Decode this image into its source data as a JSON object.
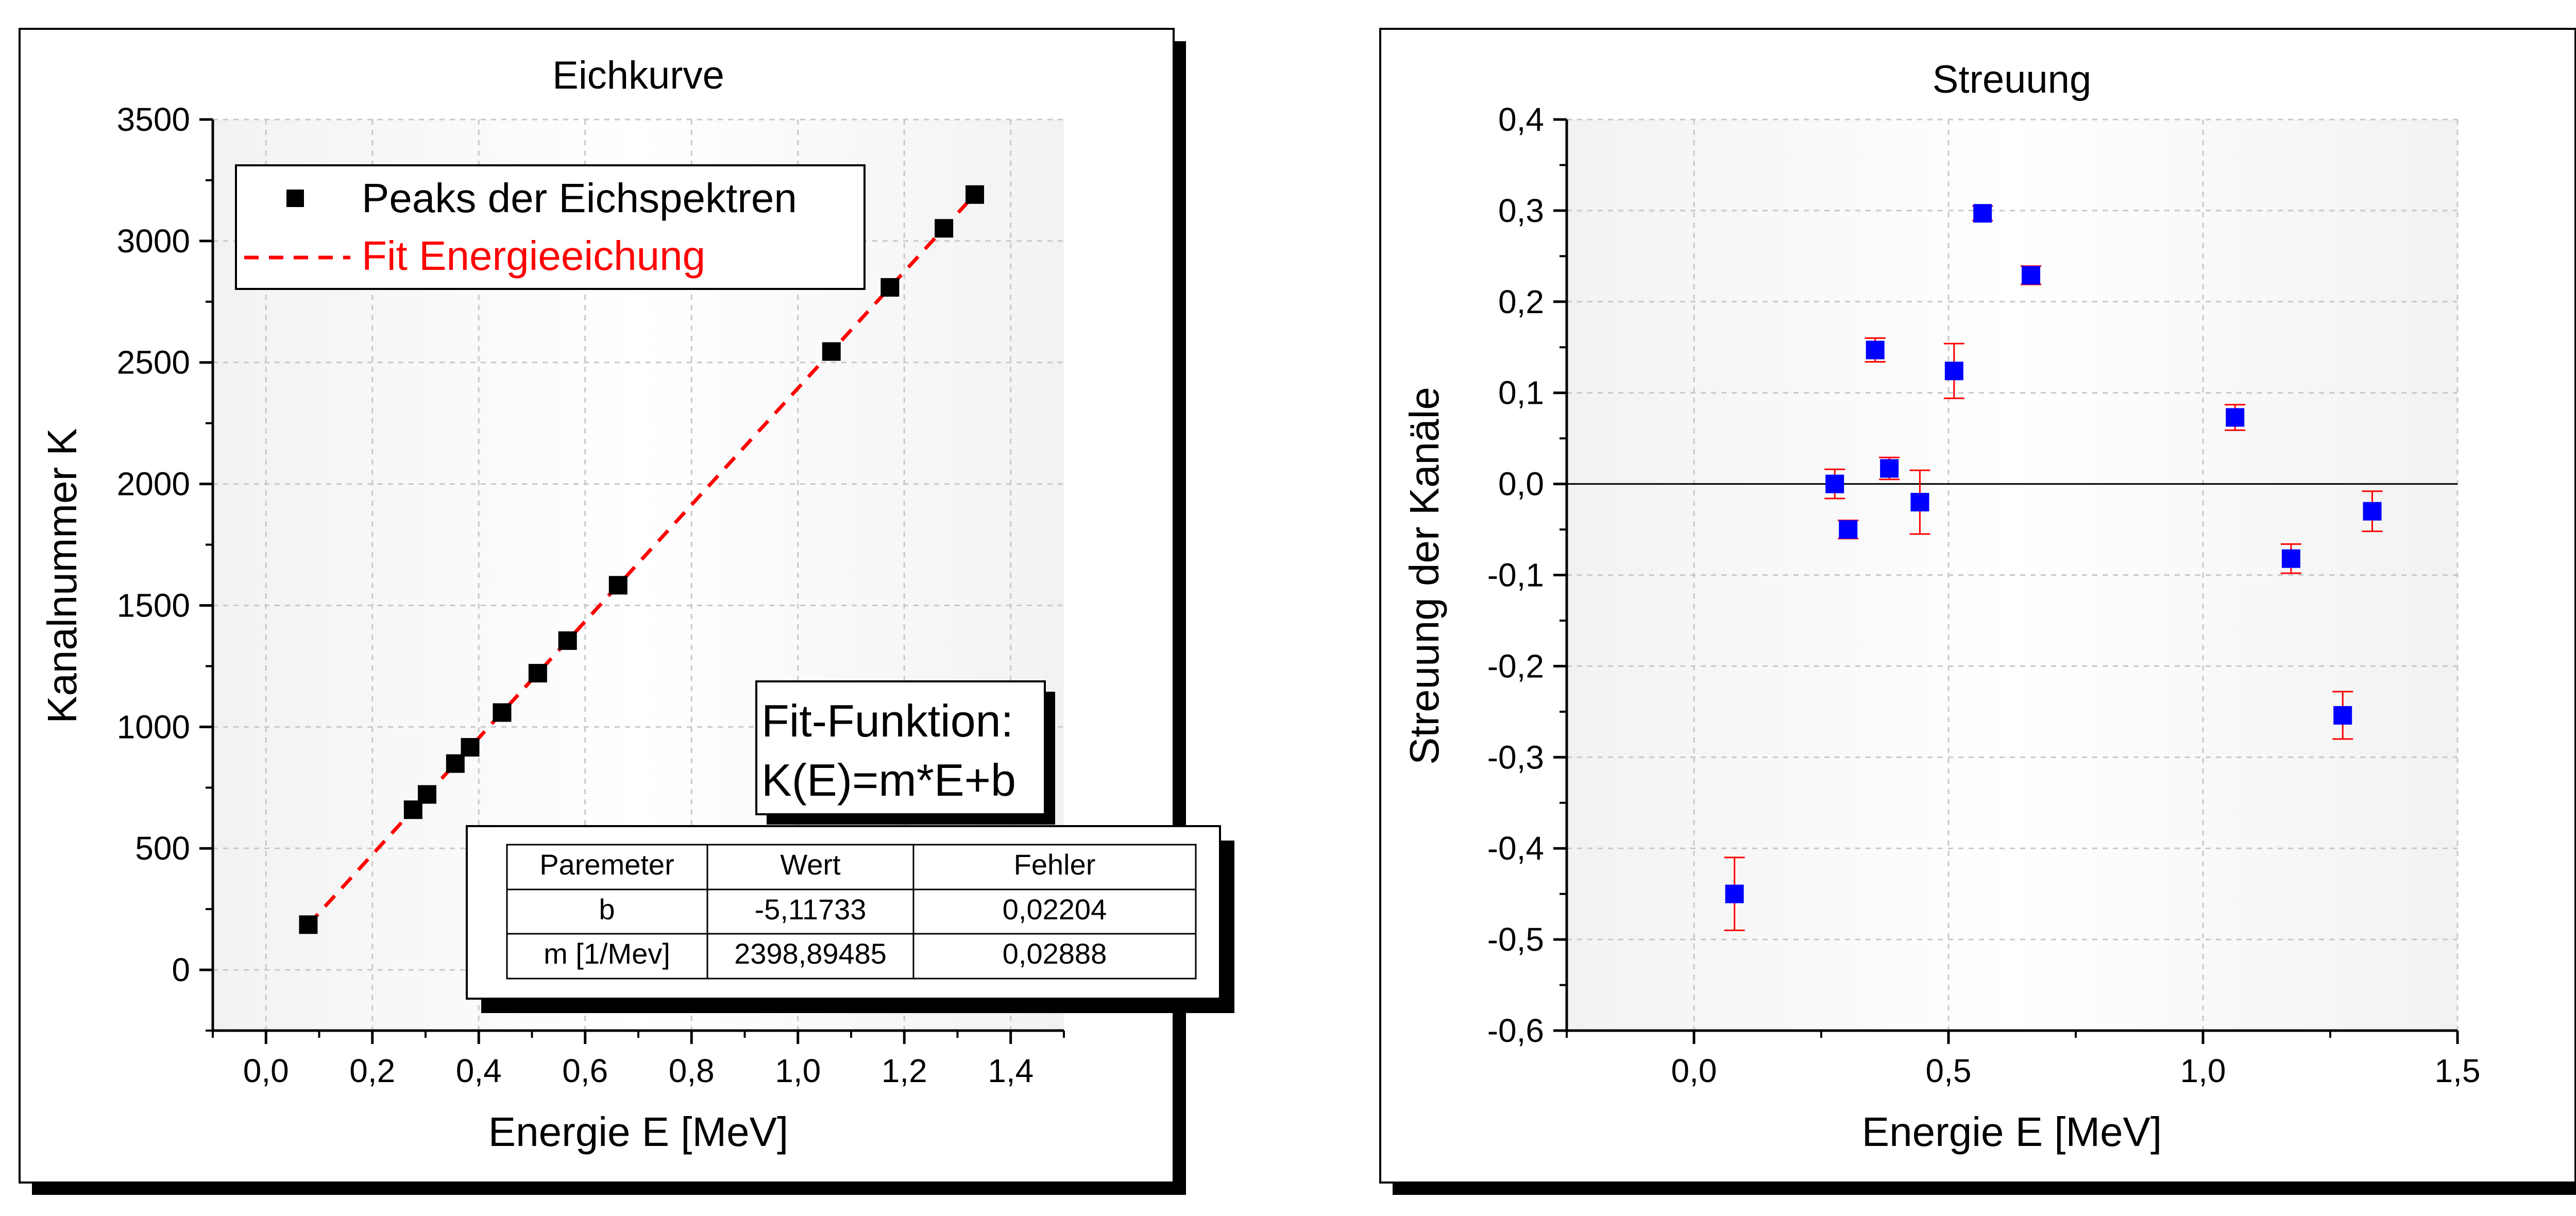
{
  "chart_data": [
    {
      "type": "scatter",
      "title": "Eichkurve",
      "xlabel": "Energie E [MeV]",
      "ylabel": "Kanalnummer K",
      "xlim": [
        -0.1,
        1.5
      ],
      "ylim": [
        -250,
        3500
      ],
      "xticks": [
        "0,0",
        "0,2",
        "0,4",
        "0,6",
        "0,8",
        "1,0",
        "1,2",
        "1,4"
      ],
      "yticks": [
        "0",
        "500",
        "1000",
        "1500",
        "2000",
        "2500",
        "3000",
        "3500"
      ],
      "grid": true,
      "legend_position": "top-left",
      "series": [
        {
          "name": "Peaks der Eichspektren",
          "color": "#000000",
          "marker": "square",
          "x": [
            0.0796,
            0.2766,
            0.3029,
            0.356,
            0.3838,
            0.4438,
            0.511,
            0.567,
            0.662,
            1.063,
            1.173,
            1.2745,
            1.3325
          ],
          "y": [
            186,
            659,
            722,
            849,
            916,
            1059,
            1221,
            1355,
            1583,
            2545,
            2809,
            3052,
            3191
          ]
        },
        {
          "name": "Fit Energieeichung",
          "color": "#ff0000",
          "style": "dashed-line",
          "x": [
            0.0796,
            1.3325
          ],
          "y": [
            185.8,
            3191.4
          ]
        }
      ],
      "fit_box": {
        "line1": "Fit-Funktion:",
        "line2": "K(E)=m*E+b"
      },
      "table": {
        "headers": [
          "Paremeter",
          "Wert",
          "Fehler"
        ],
        "rows": [
          [
            "b",
            "-5,11733",
            "0,02204"
          ],
          [
            "m [1/Mev]",
            "2398,89485",
            "0,02888"
          ]
        ]
      }
    },
    {
      "type": "scatter",
      "title": "Streuung",
      "xlabel": "Energie E [MeV]",
      "ylabel": "Streuung der Kanäle",
      "xlim": [
        -0.25,
        1.5
      ],
      "ylim": [
        -0.6,
        0.4
      ],
      "xticks": [
        "0,0",
        "0,5",
        "1,0",
        "1,5"
      ],
      "yticks": [
        "0,4",
        "0,3",
        "0,2",
        "0,1",
        "0,0",
        "-0,1",
        "-0,2",
        "-0,3",
        "-0,4",
        "-0,5",
        "-0,6"
      ],
      "grid": true,
      "reference_line_y": 0,
      "series": [
        {
          "color": "#0000ff",
          "errorbar_color": "#ff0000",
          "marker": "square",
          "x": [
            0.0796,
            0.2766,
            0.3029,
            0.356,
            0.3838,
            0.4438,
            0.511,
            0.567,
            0.662,
            1.063,
            1.173,
            1.2745,
            1.3325
          ],
          "y": [
            -0.45,
            0.0,
            -0.05,
            0.147,
            0.017,
            -0.02,
            0.124,
            0.297,
            0.229,
            0.073,
            -0.082,
            -0.254,
            -0.03
          ],
          "err": [
            0.04,
            0.016,
            0.01,
            0.013,
            0.012,
            0.035,
            0.03,
            0.008,
            0.01,
            0.014,
            0.016,
            0.026,
            0.022
          ]
        }
      ]
    }
  ]
}
